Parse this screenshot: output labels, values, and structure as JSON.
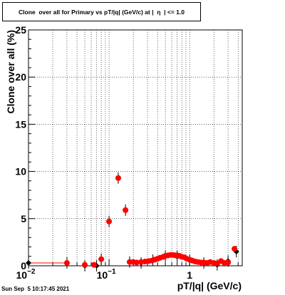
{
  "chart_data": {
    "type": "scatter",
    "title": "Clone  over all for Primary vs pT/|q| (GeV/c) at |  η  | <= 1.0",
    "xlabel": "pT/|q| (GeV/c)",
    "ylabel": "Clone  over all (%)",
    "xscale": "log",
    "xlim": [
      0.01,
      4.5
    ],
    "ylim": [
      0,
      25
    ],
    "grid": true,
    "x_ticks": [
      {
        "label": "10",
        "exp": "−2"
      },
      {
        "label": "10",
        "exp": "−1"
      },
      {
        "label": "1",
        "exp": ""
      }
    ],
    "y_ticks": [
      "0",
      "5",
      "10",
      "15",
      "20",
      "25"
    ],
    "series": [
      {
        "color": "#000000",
        "marker": "diamond",
        "points": [
          {
            "x": 0.01,
            "y": 0.3
          },
          {
            "x": 0.03,
            "y": 0.3
          },
          {
            "x": 0.05,
            "y": 0.0
          },
          {
            "x": 0.07,
            "y": 0.0
          },
          {
            "x": 0.08,
            "y": 0.7
          },
          {
            "x": 0.1,
            "y": 4.7
          },
          {
            "x": 0.13,
            "y": 9.3
          },
          {
            "x": 0.16,
            "y": 5.9
          },
          {
            "x": 0.18,
            "y": 0.4
          },
          {
            "x": 0.25,
            "y": 0.3
          },
          {
            "x": 0.35,
            "y": 0.6
          },
          {
            "x": 0.5,
            "y": 1.0
          },
          {
            "x": 0.7,
            "y": 1.0
          },
          {
            "x": 1.0,
            "y": 0.6
          },
          {
            "x": 1.5,
            "y": 0.3
          },
          {
            "x": 2.2,
            "y": 0.1
          },
          {
            "x": 3.0,
            "y": 0.5
          },
          {
            "x": 3.8,
            "y": 1.5
          }
        ]
      },
      {
        "color": "#ff0000",
        "marker": "circle",
        "points": [
          {
            "x": 0.03,
            "y": 0.3
          },
          {
            "x": 0.05,
            "y": 0.1
          },
          {
            "x": 0.065,
            "y": 0.1
          },
          {
            "x": 0.08,
            "y": 0.7
          },
          {
            "x": 0.1,
            "y": 4.7
          },
          {
            "x": 0.13,
            "y": 9.3
          },
          {
            "x": 0.16,
            "y": 5.9
          },
          {
            "x": 0.18,
            "y": 0.4
          },
          {
            "x": 0.2,
            "y": 0.4
          },
          {
            "x": 0.22,
            "y": 0.35
          },
          {
            "x": 0.25,
            "y": 0.4
          },
          {
            "x": 0.28,
            "y": 0.45
          },
          {
            "x": 0.31,
            "y": 0.5
          },
          {
            "x": 0.34,
            "y": 0.55
          },
          {
            "x": 0.37,
            "y": 0.65
          },
          {
            "x": 0.4,
            "y": 0.75
          },
          {
            "x": 0.43,
            "y": 0.85
          },
          {
            "x": 0.47,
            "y": 0.95
          },
          {
            "x": 0.5,
            "y": 1.05
          },
          {
            "x": 0.54,
            "y": 1.1
          },
          {
            "x": 0.58,
            "y": 1.15
          },
          {
            "x": 0.62,
            "y": 1.15
          },
          {
            "x": 0.66,
            "y": 1.1
          },
          {
            "x": 0.7,
            "y": 1.1
          },
          {
            "x": 0.75,
            "y": 1.05
          },
          {
            "x": 0.8,
            "y": 0.95
          },
          {
            "x": 0.86,
            "y": 0.9
          },
          {
            "x": 0.92,
            "y": 0.75
          },
          {
            "x": 1.0,
            "y": 0.65
          },
          {
            "x": 1.08,
            "y": 0.55
          },
          {
            "x": 1.17,
            "y": 0.45
          },
          {
            "x": 1.27,
            "y": 0.4
          },
          {
            "x": 1.38,
            "y": 0.35
          },
          {
            "x": 1.5,
            "y": 0.35
          },
          {
            "x": 1.65,
            "y": 0.3
          },
          {
            "x": 1.8,
            "y": 0.4
          },
          {
            "x": 2.0,
            "y": 0.3
          },
          {
            "x": 2.2,
            "y": 0.25
          },
          {
            "x": 2.45,
            "y": 0.5
          },
          {
            "x": 2.7,
            "y": 0.3
          },
          {
            "x": 3.0,
            "y": 0.35
          },
          {
            "x": 3.6,
            "y": 1.8
          }
        ]
      }
    ],
    "timestamp": "Sun Sep  5 10:17:45 2021"
  }
}
